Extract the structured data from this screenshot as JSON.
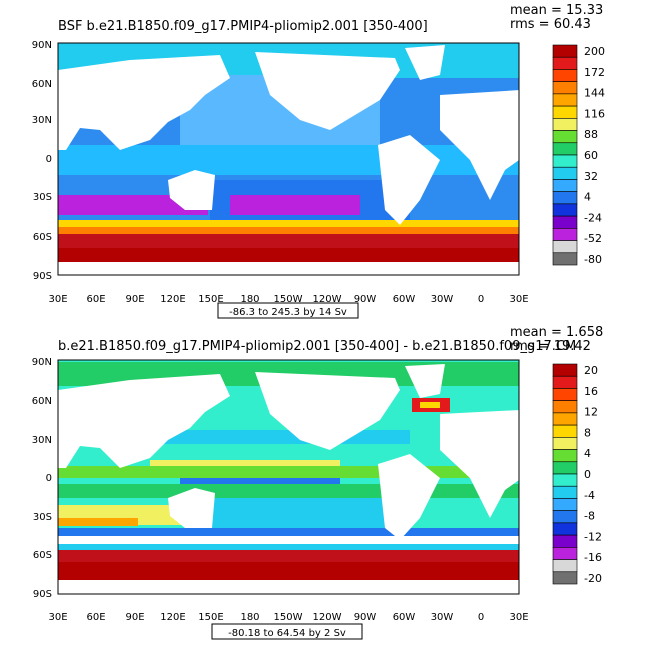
{
  "panels": [
    {
      "title": "BSF b.e21.B1850.f09_g17.PMIP4-pliomip2.001 [350-400]",
      "stats": [
        "mean = 15.33",
        "rms = 60.43"
      ],
      "range_label": "-86.3 to 245.3 by 14 Sv",
      "colorbar": {
        "labels": [
          "200",
          "172",
          "144",
          "116",
          "88",
          "60",
          "32",
          "4",
          "-24",
          "-52",
          "-80"
        ],
        "colors": [
          "#b30000",
          "#e31a1c",
          "#ff4500",
          "#ff7f00",
          "#ffa500",
          "#ffd700",
          "#f0f060",
          "#66dd33",
          "#22cc66",
          "#33eecc",
          "#22ccee",
          "#33aaff",
          "#2277ee",
          "#1133dd",
          "#7a00cc",
          "#bb22dd",
          "#d8d8d8",
          "#707070"
        ]
      }
    },
    {
      "title": "b.e21.B1850.f09_g17.PMIP4-pliomip2.001 [350-400] - b.e21.B1850.f09_g17.CM",
      "stats": [
        "mean = 1.658",
        "rms = 19.42"
      ],
      "range_label": "-80.18 to 64.54 by 2 Sv",
      "colorbar": {
        "labels": [
          "20",
          "16",
          "12",
          "8",
          "4",
          "0",
          "-4",
          "-8",
          "-12",
          "-16",
          "-20"
        ],
        "colors": [
          "#b30000",
          "#e31a1c",
          "#ff4500",
          "#ff7f00",
          "#ffa500",
          "#ffd700",
          "#f0f060",
          "#66dd33",
          "#22cc66",
          "#33eecc",
          "#22ccee",
          "#33aaff",
          "#2277ee",
          "#1133dd",
          "#7a00cc",
          "#bb22dd",
          "#d8d8d8",
          "#707070"
        ]
      }
    }
  ],
  "axes": {
    "lat_labels": [
      "90N",
      "60N",
      "30N",
      "0",
      "30S",
      "60S",
      "90S"
    ],
    "lon_labels": [
      "30E",
      "60E",
      "90E",
      "120E",
      "150E",
      "180",
      "150W",
      "120W",
      "90W",
      "60W",
      "30W",
      "0",
      "30E"
    ]
  }
}
